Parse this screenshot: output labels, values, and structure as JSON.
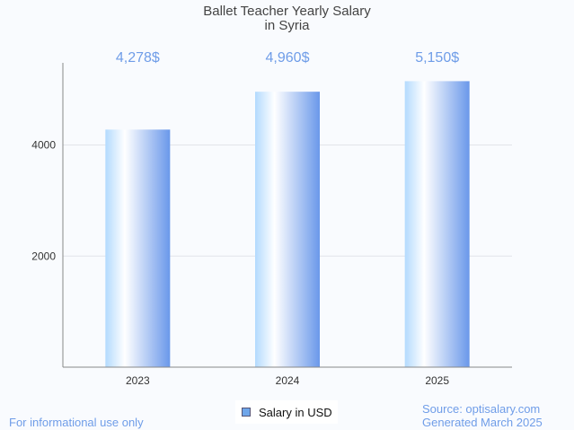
{
  "chart_data": {
    "type": "bar",
    "title": "Ballet Teacher Yearly Salary",
    "subtitle": "in Syria",
    "categories": [
      "2023",
      "2024",
      "2025"
    ],
    "values": [
      4278,
      4960,
      5150
    ],
    "data_labels": [
      "4,278$",
      "4,960$",
      "5,150$"
    ],
    "yticks": [
      2000,
      4000
    ],
    "ytick_labels": [
      "2000",
      "4000"
    ],
    "ylim": [
      0,
      5480
    ],
    "xlabel": "",
    "ylabel": "",
    "grid": true,
    "legend": {
      "label": "Salary in USD",
      "placement": "bottom-center"
    },
    "colors": {
      "bar_light": "#b3dafe",
      "bar_mid": "#ffffff",
      "bar_dark": "#6a98ea",
      "label": "#6f9de8"
    }
  },
  "footer": {
    "disclaimer": "For informational use only",
    "source": "Source: optisalary.com",
    "generated": "Generated March 2025"
  }
}
